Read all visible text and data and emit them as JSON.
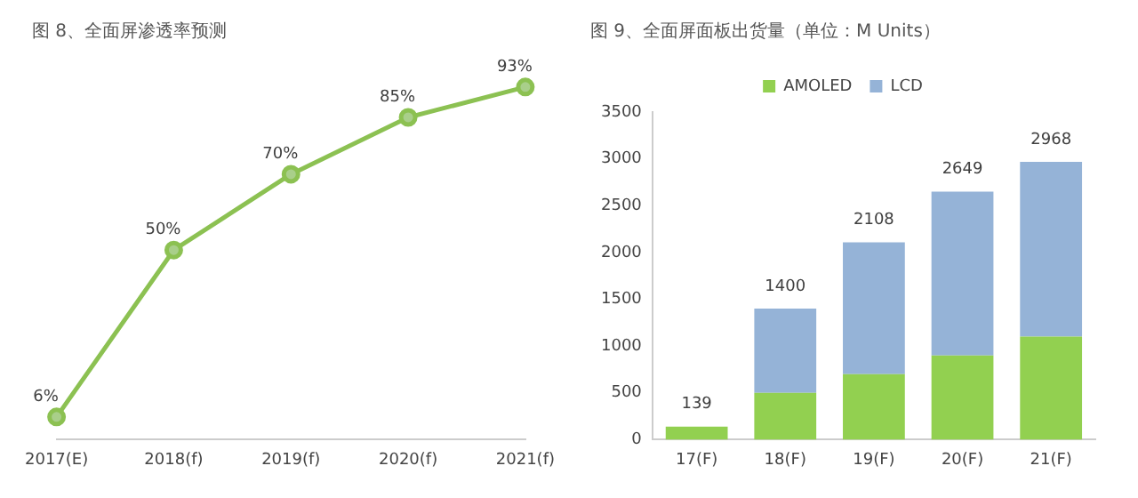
{
  "chart_data": [
    {
      "type": "line",
      "title": "图 8、全面屏渗透率预测",
      "categories": [
        "2017(E)",
        "2018(f)",
        "2019(f)",
        "2020(f)",
        "2021(f)"
      ],
      "series": [
        {
          "color": "#8cc152",
          "values": [
            6,
            50,
            70,
            85,
            93
          ],
          "value_labels": [
            "6%",
            "50%",
            "70%",
            "85%",
            "93%"
          ]
        }
      ],
      "marker": "circle",
      "grid": false,
      "legend": false,
      "tick_labels": "x"
    },
    {
      "type": "bar",
      "title": "图 9、全面屏面板出货量（单位：M Units）",
      "categories": [
        "17(F)",
        "18(F)",
        "19(F)",
        "20(F)",
        "21(F)"
      ],
      "series": [
        {
          "name": "AMOLED",
          "color": "#92d050",
          "values": [
            139,
            500,
            700,
            900,
            1100
          ]
        },
        {
          "name": "LCD",
          "color": "#95b3d7",
          "values": [
            0,
            900,
            1408,
            1749,
            1868
          ]
        }
      ],
      "stacked": true,
      "totals": [
        "139",
        "1400",
        "2108",
        "2649",
        "2968"
      ],
      "ylim": [
        0,
        3500
      ],
      "yticks": [
        0,
        500,
        1000,
        1500,
        2000,
        2500,
        3000,
        3500
      ],
      "grid": false,
      "legend": "top"
    }
  ]
}
